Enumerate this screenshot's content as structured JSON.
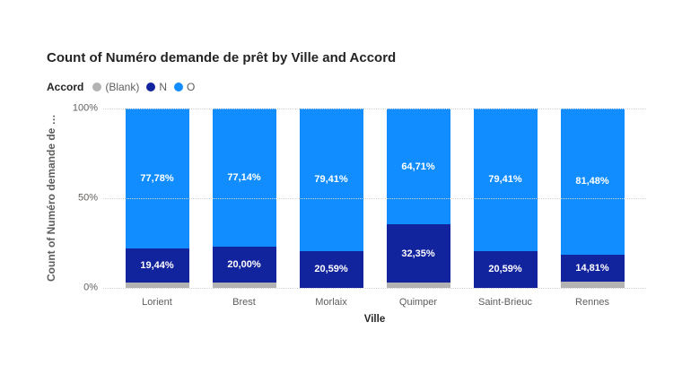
{
  "chart_data": {
    "type": "bar",
    "subtype": "100%-stacked-column",
    "title": "Count of Numéro demande de prêt by Ville and Accord",
    "legend_title": "Accord",
    "legend_position": "top-left",
    "xlabel": "Ville",
    "ylabel": "Count of Numéro demande de …",
    "ylim": [
      0,
      100
    ],
    "grid": "horizontal-dotted",
    "yticks": [
      {
        "label": "100%",
        "value": 100
      },
      {
        "label": "50%",
        "value": 50
      },
      {
        "label": "0%",
        "value": 0
      }
    ],
    "categories": [
      "Lorient",
      "Brest",
      "Morlaix",
      "Quimper",
      "Saint-Brieuc",
      "Rennes"
    ],
    "series": [
      {
        "name": "(Blank)",
        "color": "#B3B3B3",
        "values": [
          2.78,
          2.86,
          0,
          2.94,
          0,
          3.71
        ],
        "labels": [
          "",
          "",
          "",
          "",
          "",
          ""
        ]
      },
      {
        "name": "N",
        "color": "#12239E",
        "values": [
          19.44,
          20.0,
          20.59,
          32.35,
          20.59,
          14.81
        ],
        "labels": [
          "19,44%",
          "20,00%",
          "20,59%",
          "32,35%",
          "20,59%",
          "14,81%"
        ]
      },
      {
        "name": "O",
        "color": "#118DFF",
        "values": [
          77.78,
          77.14,
          79.41,
          64.71,
          79.41,
          81.48
        ],
        "labels": [
          "77,78%",
          "77,14%",
          "79,41%",
          "64,71%",
          "79,41%",
          "81,48%"
        ]
      }
    ]
  }
}
